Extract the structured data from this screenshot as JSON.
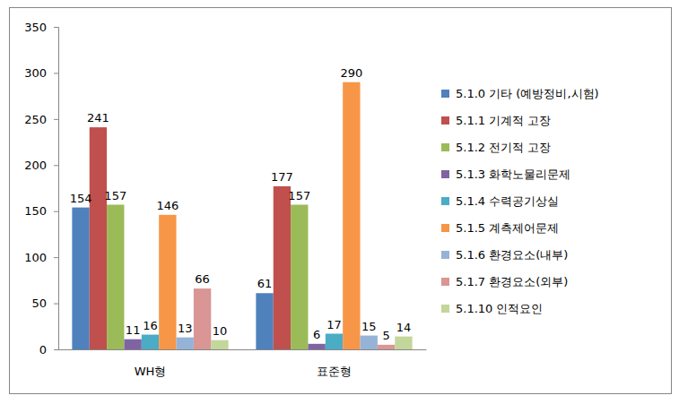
{
  "chart_data": {
    "type": "bar",
    "categories": [
      "WH형",
      "표준형"
    ],
    "series": [
      {
        "name": "5.1.0 기타 (예방정비,시험)",
        "color": "#4f81bd",
        "values": [
          154,
          61
        ]
      },
      {
        "name": "5.1.1 기계적 고장",
        "color": "#c0504d",
        "values": [
          241,
          177
        ]
      },
      {
        "name": "5.1.2 전기적 고장",
        "color": "#9bbb59",
        "values": [
          157,
          157
        ]
      },
      {
        "name": "5.1.3 화학노물리문제",
        "color": "#8064a2",
        "values": [
          11,
          6
        ]
      },
      {
        "name": "5.1.4 수력공기상실",
        "color": "#4bacc6",
        "values": [
          16,
          17
        ]
      },
      {
        "name": "5.1.5 계측제어문제",
        "color": "#f79646",
        "values": [
          146,
          290
        ]
      },
      {
        "name": "5.1.6 환경요소(내부)",
        "color": "#95b3d7",
        "values": [
          13,
          15
        ]
      },
      {
        "name": "5.1.7 환경요소(외부)",
        "color": "#d99694",
        "values": [
          66,
          5
        ]
      },
      {
        "name": "5.1.10 인적요인",
        "color": "#c3d69b",
        "values": [
          10,
          14
        ]
      }
    ],
    "ylim": [
      0,
      350
    ],
    "yticks": [
      0,
      50,
      100,
      150,
      200,
      250,
      300,
      350
    ],
    "grid": false,
    "data_labels": true,
    "legend": "right"
  }
}
